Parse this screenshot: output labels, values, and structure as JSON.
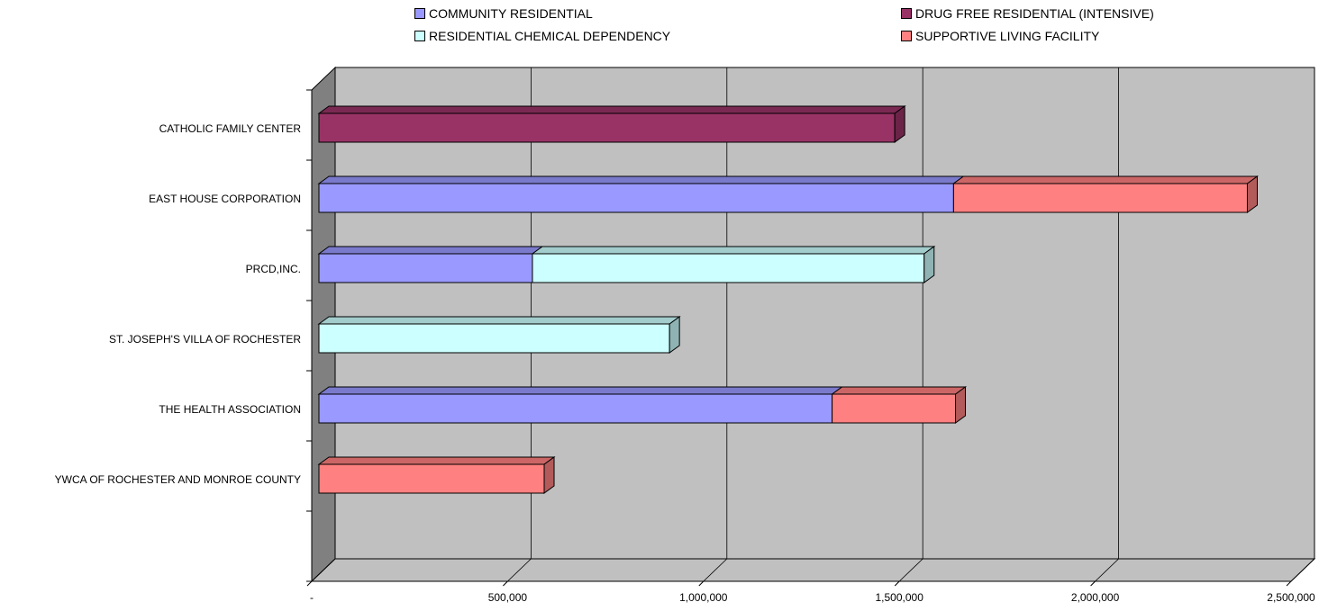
{
  "chart_data": {
    "type": "bar",
    "orientation": "horizontal",
    "stacked": true,
    "three_d": true,
    "categories": [
      "CATHOLIC FAMILY CENTER",
      "EAST HOUSE CORPORATION",
      "PRCD,INC.",
      "ST. JOSEPH'S VILLA OF ROCHESTER",
      "THE HEALTH ASSOCIATION",
      "YWCA OF ROCHESTER AND MONROE COUNTY"
    ],
    "series": [
      {
        "name": "COMMUNITY RESIDENTIAL",
        "color": "#9999ff",
        "side": "#6b6bb3",
        "top": "#7a7acc",
        "values": [
          0,
          1620000,
          545000,
          0,
          1310000,
          0
        ]
      },
      {
        "name": "DRUG FREE RESIDENTIAL (INTENSIVE)",
        "color": "#993366",
        "side": "#6b2447",
        "top": "#7a2952",
        "values": [
          1470000,
          0,
          0,
          0,
          0,
          0
        ]
      },
      {
        "name": "RESIDENTIAL CHEMICAL DEPENDENCY",
        "color": "#ccffff",
        "side": "#8fb3b3",
        "top": "#a3cccc",
        "values": [
          0,
          0,
          1000000,
          895000,
          0,
          0
        ]
      },
      {
        "name": "SUPPORTIVE LIVING FACILITY",
        "color": "#ff8080",
        "side": "#b35a5a",
        "top": "#cc6666",
        "values": [
          0,
          750000,
          0,
          0,
          315000,
          575000
        ]
      }
    ],
    "x_ticks": [
      "-",
      "500,000",
      "1,000,000",
      "1,500,000",
      "2,000,000",
      "2,500,000"
    ],
    "xlim": [
      0,
      2500000
    ],
    "legend_position": "top",
    "grid": true
  }
}
